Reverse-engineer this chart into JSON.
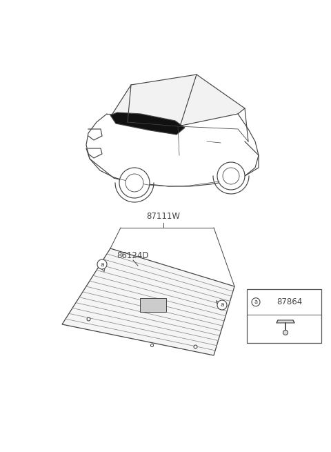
{
  "bg_color": "#ffffff",
  "line_color": "#444444",
  "label_87111W": "87111W",
  "label_86124D": "86124D",
  "label_87864": "87864",
  "label_a": "a",
  "annotation_fontsize": 8.5
}
